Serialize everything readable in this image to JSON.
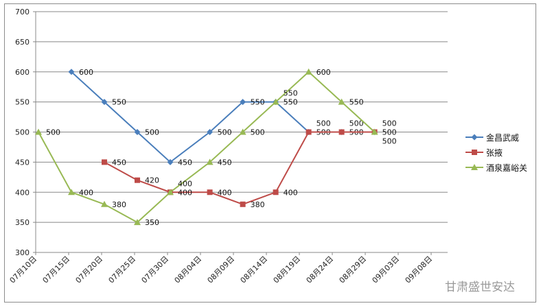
{
  "chart_data": {
    "type": "line",
    "title": "",
    "xlabel": "",
    "ylabel": "",
    "ylim": [
      300,
      700
    ],
    "yticks": [
      300,
      350,
      400,
      450,
      500,
      550,
      600,
      650,
      700
    ],
    "x_axis_type": "date",
    "xtick_labels": [
      "07月10日",
      "07月15日",
      "07月20日",
      "07月25日",
      "07月30日",
      "08月04日",
      "08月09日",
      "08月14日",
      "08月19日",
      "08月24日",
      "08月29日",
      "09月03日",
      "09月08日"
    ],
    "grid": "horizontal",
    "legend_position": "right",
    "data_labels": true,
    "series": [
      {
        "name": "金昌武威",
        "color": "#4a7ebb",
        "marker": "diamond",
        "points": [
          [
            "07-15",
            600
          ],
          [
            "07-20",
            550
          ],
          [
            "07-25",
            500
          ],
          [
            "07-30",
            450
          ],
          [
            "08-05",
            500
          ],
          [
            "08-10",
            550
          ],
          [
            "08-15",
            550
          ],
          [
            "08-20",
            500
          ],
          [
            "08-25",
            500
          ],
          [
            "08-30",
            500
          ]
        ]
      },
      {
        "name": "张掖",
        "color": "#be4b48",
        "marker": "square",
        "points": [
          [
            "07-20",
            450
          ],
          [
            "07-25",
            420
          ],
          [
            "07-30",
            400
          ],
          [
            "08-05",
            400
          ],
          [
            "08-10",
            380
          ],
          [
            "08-15",
            400
          ],
          [
            "08-20",
            500
          ],
          [
            "08-25",
            500
          ],
          [
            "08-30",
            500
          ]
        ]
      },
      {
        "name": "酒泉嘉峪关",
        "color": "#98b954",
        "marker": "triangle",
        "points": [
          [
            "07-10",
            500
          ],
          [
            "07-15",
            400
          ],
          [
            "07-20",
            380
          ],
          [
            "07-25",
            350
          ],
          [
            "07-30",
            400
          ],
          [
            "08-05",
            450
          ],
          [
            "08-10",
            500
          ],
          [
            "08-15",
            550
          ],
          [
            "08-20",
            600
          ],
          [
            "08-25",
            550
          ],
          [
            "08-30",
            500
          ]
        ]
      }
    ]
  },
  "watermark": "甘肃盛世安达"
}
